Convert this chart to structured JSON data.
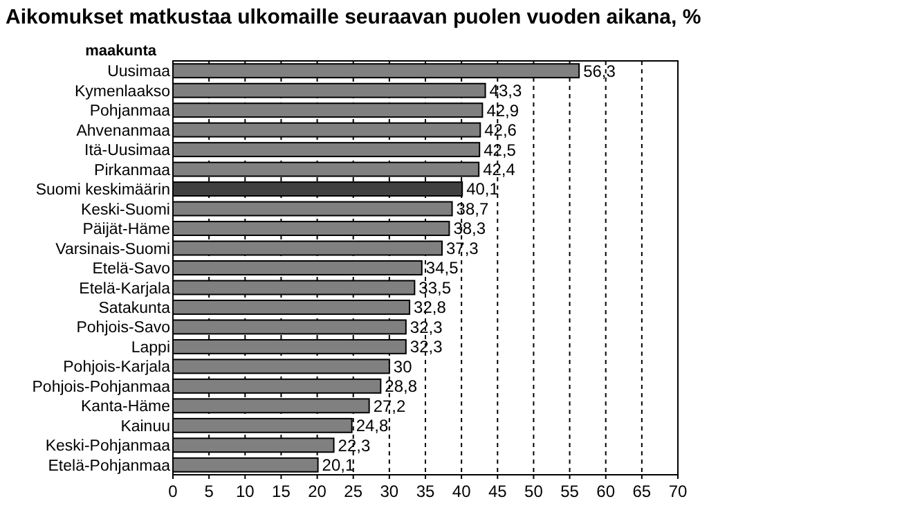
{
  "chart_data": {
    "type": "bar",
    "orientation": "horizontal",
    "title": "Aikomukset matkustaa ulkomaille seuraavan puolen vuoden aikana, %",
    "ylabel": "maakunta",
    "categories": [
      "Uusimaa",
      "Kymenlaakso",
      "Pohjanmaa",
      "Ahvenanmaa",
      "Itä-Uusimaa",
      "Pirkanmaa",
      "Suomi keskimäärin",
      "Keski-Suomi",
      "Päijät-Häme",
      "Varsinais-Suomi",
      "Etelä-Savo",
      "Etelä-Karjala",
      "Satakunta",
      "Pohjois-Savo",
      "Lappi",
      "Pohjois-Karjala",
      "Pohjois-Pohjanmaa",
      "Kanta-Häme",
      "Kainuu",
      "Keski-Pohjanmaa",
      "Etelä-Pohjanmaa"
    ],
    "values": [
      56.3,
      43.3,
      42.9,
      42.6,
      42.5,
      42.4,
      40.1,
      38.7,
      38.3,
      37.3,
      34.5,
      33.5,
      32.8,
      32.3,
      32.3,
      30,
      28.8,
      27.2,
      24.8,
      22.3,
      20.1
    ],
    "value_labels": [
      "56,3",
      "43,3",
      "42,9",
      "42,6",
      "42,5",
      "42,4",
      "40,1",
      "38,7",
      "38,3",
      "37,3",
      "34,5",
      "33,5",
      "32,8",
      "32,3",
      "32,3",
      "30",
      "28,8",
      "27,2",
      "24,8",
      "22,3",
      "20,1"
    ],
    "colors": [
      "#808080",
      "#808080",
      "#808080",
      "#808080",
      "#808080",
      "#808080",
      "#404040",
      "#808080",
      "#808080",
      "#808080",
      "#808080",
      "#808080",
      "#808080",
      "#808080",
      "#808080",
      "#808080",
      "#808080",
      "#808080",
      "#808080",
      "#808080",
      "#808080"
    ],
    "xlim": [
      0,
      70
    ],
    "xticks": [
      0,
      5,
      10,
      15,
      20,
      25,
      30,
      35,
      40,
      45,
      50,
      55,
      60,
      65,
      70
    ],
    "grid": "x"
  }
}
